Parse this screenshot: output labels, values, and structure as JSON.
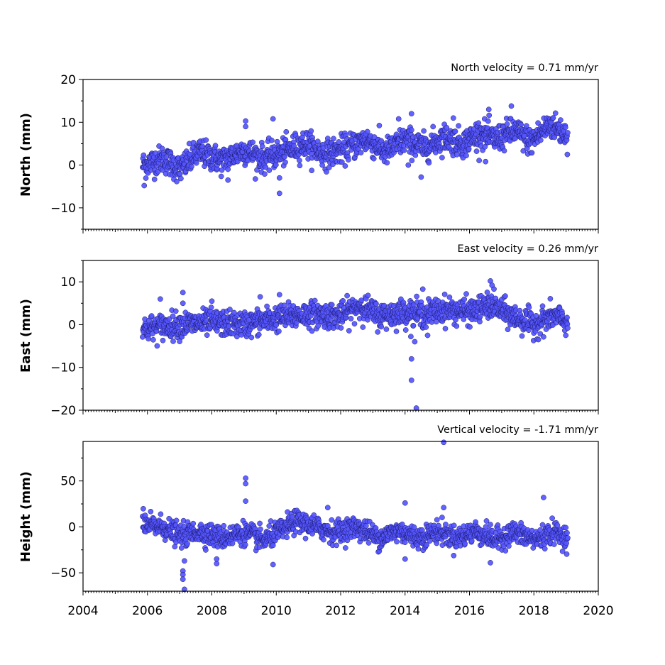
{
  "chart_data": [
    {
      "type": "scatter",
      "title": "North velocity = 0.71 mm/yr",
      "ylabel": "North (mm)",
      "xlim": [
        2004,
        2020
      ],
      "ylim": [
        -15,
        20
      ],
      "yticks": [
        -10,
        0,
        10,
        20
      ],
      "xticks": [],
      "marker_color": "#5555ff",
      "trend_points": [
        [
          2005.85,
          0
        ],
        [
          2006.5,
          1.5
        ],
        [
          2007.0,
          -1
        ],
        [
          2007.6,
          3
        ],
        [
          2008.3,
          1
        ],
        [
          2009.0,
          3.5
        ],
        [
          2009.6,
          1.5
        ],
        [
          2010.2,
          3
        ],
        [
          2010.9,
          5
        ],
        [
          2011.5,
          2.5
        ],
        [
          2012.2,
          4
        ],
        [
          2012.8,
          6
        ],
        [
          2013.4,
          3
        ],
        [
          2014.0,
          6
        ],
        [
          2014.6,
          4
        ],
        [
          2015.2,
          6.5
        ],
        [
          2015.8,
          5
        ],
        [
          2016.3,
          7.5
        ],
        [
          2016.8,
          6
        ],
        [
          2017.4,
          8
        ],
        [
          2017.9,
          5.5
        ],
        [
          2018.5,
          9.5
        ],
        [
          2019.05,
          7
        ]
      ],
      "noise": 1.6,
      "outliers": [
        [
          2005.9,
          -4.8
        ],
        [
          2009.05,
          10.3
        ],
        [
          2009.05,
          9
        ],
        [
          2009.9,
          10.8
        ],
        [
          2010.1,
          -6.6
        ],
        [
          2010.1,
          -3
        ],
        [
          2014.2,
          12
        ],
        [
          2014.5,
          -2.8
        ],
        [
          2016.6,
          13
        ],
        [
          2017.3,
          13.8
        ],
        [
          2013.8,
          10.8
        ],
        [
          2015.5,
          11
        ],
        [
          2008.5,
          -3.5
        ],
        [
          2016.5,
          0.8
        ],
        [
          2014.1,
          0
        ]
      ]
    },
    {
      "type": "scatter",
      "title": "East velocity = 0.26 mm/yr",
      "ylabel": "East (mm)",
      "xlim": [
        2004,
        2020
      ],
      "ylim": [
        -20,
        15
      ],
      "yticks": [
        -20,
        -10,
        0,
        10
      ],
      "xticks": [],
      "marker_color": "#5555ff",
      "trend_points": [
        [
          2005.85,
          -1
        ],
        [
          2007.0,
          0
        ],
        [
          2008.0,
          0.5
        ],
        [
          2009.0,
          0
        ],
        [
          2010.0,
          1.5
        ],
        [
          2011.0,
          2.5
        ],
        [
          2012.0,
          2
        ],
        [
          2012.6,
          4.5
        ],
        [
          2013.2,
          2
        ],
        [
          2014.0,
          3
        ],
        [
          2014.6,
          2.5
        ],
        [
          2015.2,
          3.5
        ],
        [
          2016.0,
          3
        ],
        [
          2016.7,
          4.5
        ],
        [
          2017.3,
          2
        ],
        [
          2018.0,
          0
        ],
        [
          2018.6,
          2
        ],
        [
          2019.05,
          0.5
        ]
      ],
      "noise": 1.5,
      "outliers": [
        [
          2014.2,
          -8
        ],
        [
          2014.2,
          -13
        ],
        [
          2014.35,
          -19.5
        ],
        [
          2014.3,
          -4
        ],
        [
          2007.1,
          7.5
        ],
        [
          2007.1,
          5
        ],
        [
          2006.4,
          6
        ],
        [
          2010.1,
          7
        ],
        [
          2016.65,
          10.2
        ],
        [
          2016.7,
          9.2
        ],
        [
          2014.55,
          8.3
        ],
        [
          2008.0,
          5.5
        ],
        [
          2009.5,
          6.5
        ],
        [
          2014.7,
          -2.5
        ]
      ]
    },
    {
      "type": "scatter",
      "title": "Vertical velocity = -1.71 mm/yr",
      "ylabel": "Height (mm)",
      "xlim": [
        2004,
        2020
      ],
      "ylim": [
        -70,
        93
      ],
      "yticks": [
        -50,
        0,
        50
      ],
      "xticks": [
        2004,
        2006,
        2008,
        2010,
        2012,
        2014,
        2016,
        2018,
        2020
      ],
      "marker_color": "#5555ff",
      "trend_points": [
        [
          2005.85,
          2
        ],
        [
          2006.5,
          0
        ],
        [
          2007.0,
          -10
        ],
        [
          2007.6,
          -5
        ],
        [
          2008.3,
          -12
        ],
        [
          2009.0,
          -6
        ],
        [
          2009.6,
          -15
        ],
        [
          2010.1,
          -5
        ],
        [
          2010.6,
          6
        ],
        [
          2011.2,
          0
        ],
        [
          2011.8,
          -6
        ],
        [
          2012.5,
          0
        ],
        [
          2013.2,
          -12
        ],
        [
          2013.8,
          -4
        ],
        [
          2014.4,
          -12
        ],
        [
          2015.0,
          -5
        ],
        [
          2015.6,
          -12
        ],
        [
          2016.2,
          -5
        ],
        [
          2016.8,
          -14
        ],
        [
          2017.4,
          -6
        ],
        [
          2018.0,
          -14
        ],
        [
          2018.6,
          -6
        ],
        [
          2019.05,
          -12
        ]
      ],
      "noise": 6,
      "outliers": [
        [
          2007.1,
          -48
        ],
        [
          2007.1,
          -52
        ],
        [
          2007.1,
          -57
        ],
        [
          2007.15,
          -68
        ],
        [
          2007.15,
          -37
        ],
        [
          2009.05,
          53
        ],
        [
          2009.05,
          47
        ],
        [
          2009.05,
          28
        ],
        [
          2015.2,
          92
        ],
        [
          2015.2,
          21
        ],
        [
          2014.0,
          26
        ],
        [
          2018.3,
          32
        ],
        [
          2016.65,
          -39
        ],
        [
          2009.9,
          -41
        ],
        [
          2008.15,
          -40
        ],
        [
          2008.15,
          -35
        ],
        [
          2014.0,
          -35
        ],
        [
          2011.6,
          21
        ]
      ]
    }
  ]
}
